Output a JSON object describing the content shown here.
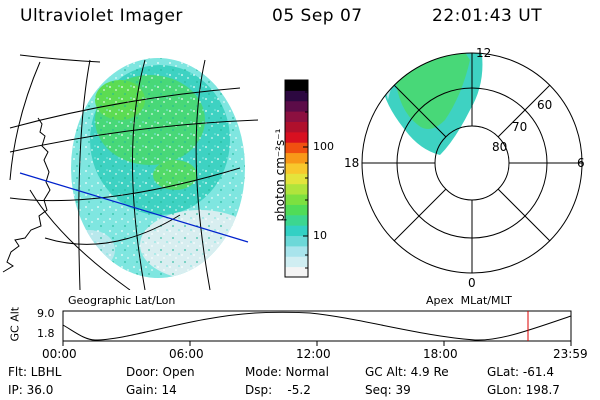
{
  "header": {
    "instrument": "Ultraviolet Imager",
    "date": "05 Sep 07",
    "time": "22:01:43 UT"
  },
  "colorbar": {
    "unit_label": "photon cm⁻²s⁻¹",
    "ticks": [
      "100",
      "10"
    ],
    "colors": [
      "#f4f4f4",
      "#d0eef2",
      "#a8e4ec",
      "#6cd8d8",
      "#33d0c4",
      "#3cd690",
      "#50dc58",
      "#7ce040",
      "#b0e43c",
      "#e4e43c",
      "#f8c82c",
      "#f89818",
      "#f05010",
      "#d81020",
      "#b0102c",
      "#8c1040",
      "#5c0c48",
      "#2c0840",
      "#000000"
    ]
  },
  "geo_panel": {
    "label": "Geographic Lat/Lon"
  },
  "polar_panel": {
    "label": "Apex  MLat/MLT",
    "mlt_labels": {
      "top": "12",
      "right": "6",
      "bottom": "0",
      "left": "18"
    },
    "mlat_labels": [
      "60",
      "70",
      "80"
    ]
  },
  "altitude_strip": {
    "axis_label": "GC Alt",
    "y_ticks": [
      "9.0",
      "1.8"
    ],
    "x_ticks": [
      "00:00",
      "06:00",
      "12:00",
      "18:00",
      "23:59"
    ],
    "marker_color": "#dd0000"
  },
  "info": {
    "flt": "Flt: LBHL",
    "ip": "IP: 36.0",
    "door": "Door: Open",
    "gain": "Gain: 14",
    "mode": "Mode: Normal",
    "dsp": "Dsp:    -5.2",
    "gcalt": "GC Alt: 4.9 Re",
    "seq": "Seq: 39",
    "glat": "GLat: -61.4",
    "glon": "GLon: 198.7"
  }
}
